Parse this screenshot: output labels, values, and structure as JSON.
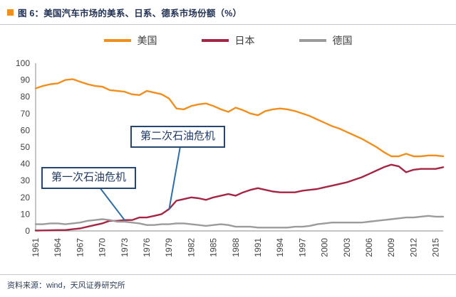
{
  "header": {
    "title": "图 6：美国汽车市场的美系、日系、德系市场份额（%）"
  },
  "footer": {
    "source": "资料来源：wind，天风证券研究所"
  },
  "colors": {
    "accent": "#F28E1C",
    "us": "#F28E1C",
    "japan": "#A52544",
    "germany": "#9B9B9B",
    "axis": "#8a8a8a",
    "annotation_border": "#25466F",
    "connector": "#2E6DA8"
  },
  "annotations": [
    {
      "text": "第二次石油危机",
      "target_year": 1979,
      "target_value": 12.5
    },
    {
      "text": "第一次石油危机",
      "target_year": 1973,
      "target_value": 6.5
    }
  ],
  "chart_data": {
    "type": "line",
    "title": "美国汽车市场的美系、日系、德系市场份额（%）",
    "xlabel": "",
    "ylabel": "",
    "grid": false,
    "legend_position": "top",
    "ylim": [
      0,
      100
    ],
    "y_ticks": [
      0,
      10,
      20,
      30,
      40,
      50,
      60,
      70,
      80,
      90,
      100
    ],
    "x": [
      1961,
      1962,
      1963,
      1964,
      1965,
      1966,
      1967,
      1968,
      1969,
      1970,
      1971,
      1972,
      1973,
      1974,
      1975,
      1976,
      1977,
      1978,
      1979,
      1980,
      1981,
      1982,
      1983,
      1984,
      1985,
      1986,
      1987,
      1988,
      1989,
      1990,
      1991,
      1992,
      1993,
      1994,
      1995,
      1996,
      1997,
      1998,
      1999,
      2000,
      2001,
      2002,
      2003,
      2004,
      2005,
      2006,
      2007,
      2008,
      2009,
      2010,
      2011,
      2012,
      2013,
      2014,
      2015,
      2016
    ],
    "x_tick_labels": [
      "1961",
      "1964",
      "1967",
      "1970",
      "1973",
      "1976",
      "1979",
      "1982",
      "1985",
      "1988",
      "1991",
      "1994",
      "1997",
      "2000",
      "2003",
      "2006",
      "2009",
      "2012",
      "2015"
    ],
    "series": [
      {
        "name": "美国",
        "color": "#F28E1C",
        "values": [
          85,
          86.5,
          87.5,
          88,
          90,
          90.5,
          89,
          87.5,
          86.5,
          86,
          84,
          83.5,
          83,
          81.5,
          81,
          83.5,
          82.5,
          81.5,
          79,
          73,
          72.5,
          74.5,
          75.5,
          76,
          74.5,
          72.5,
          71,
          73.5,
          72,
          70,
          69,
          71.5,
          72.5,
          73,
          72.5,
          71.5,
          70,
          68.5,
          66.5,
          64.5,
          62.5,
          61,
          59,
          57,
          55,
          52.5,
          50,
          47,
          44.5,
          44.5,
          46,
          44.5,
          44.5,
          45,
          45,
          44.5
        ]
      },
      {
        "name": "日本",
        "color": "#A52544",
        "values": [
          0.2,
          0.3,
          0.4,
          0.5,
          0.5,
          1,
          1.5,
          2.5,
          3.5,
          4.5,
          6,
          6,
          6.5,
          6.5,
          8,
          8,
          9,
          10,
          13,
          18,
          19,
          20,
          19.5,
          18.5,
          20,
          21,
          22,
          21,
          23,
          24.5,
          25.5,
          24.5,
          23.5,
          23,
          23,
          23,
          24,
          24.5,
          25,
          26,
          27,
          28,
          29,
          30.5,
          32,
          34,
          36,
          38,
          39.5,
          38.5,
          35,
          36.5,
          37,
          37,
          37,
          38
        ]
      },
      {
        "name": "德国",
        "color": "#9B9B9B",
        "values": [
          4,
          4,
          4.5,
          4.5,
          4,
          4.5,
          5,
          6,
          6.5,
          7,
          6.5,
          5.5,
          5.5,
          5,
          4.5,
          3.5,
          3.5,
          4,
          4,
          4.5,
          4.5,
          4,
          3.5,
          3,
          3.5,
          4,
          3.5,
          2.5,
          2.5,
          2.5,
          2,
          2,
          2,
          2,
          2,
          2.5,
          2.5,
          3,
          4,
          4.5,
          5,
          5,
          5,
          5,
          5,
          5.5,
          6,
          6.5,
          7,
          7.5,
          8,
          8,
          8.5,
          9,
          8.5,
          8.5
        ]
      }
    ]
  }
}
